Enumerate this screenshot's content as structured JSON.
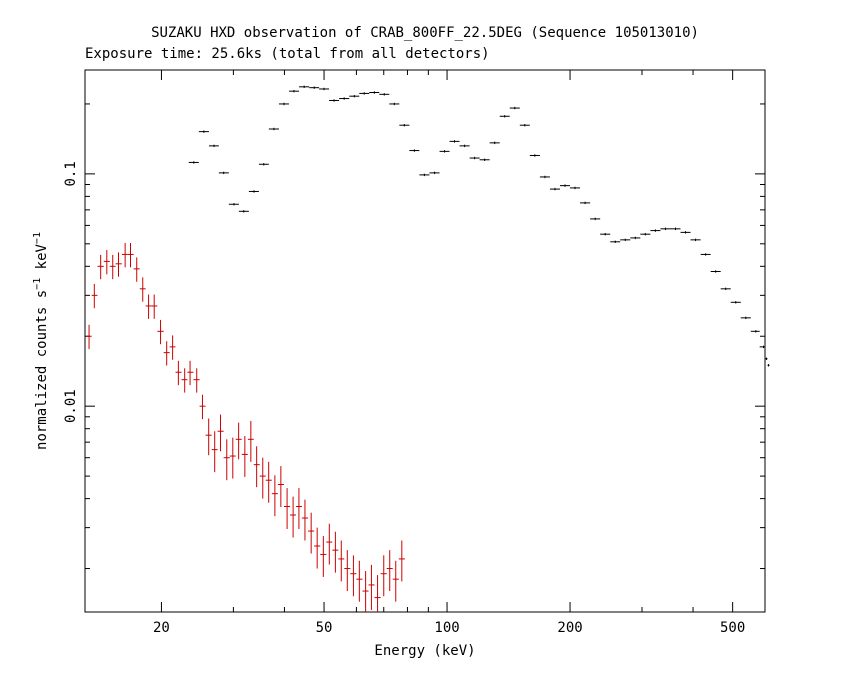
{
  "chart_data": {
    "type": "scatter",
    "title": "SUZAKU HXD observation of CRAB_800FF_22.5DEG (Sequence 105013010)",
    "subtitle": "Exposure time: 25.6ks (total from all detectors)",
    "xlabel": "Energy (keV)",
    "ylabel_main": "normalized counts s",
    "ylabel_sup1": "−1",
    "ylabel_mid": " keV",
    "ylabel_sup2": "−1",
    "xscale": "log",
    "yscale": "log",
    "xlim": [
      13,
      600
    ],
    "ylim": [
      0.0013,
      0.28
    ],
    "xticks": [
      {
        "v": 20,
        "label": "20"
      },
      {
        "v": 50,
        "label": "50"
      },
      {
        "v": 100,
        "label": "100"
      },
      {
        "v": 200,
        "label": "200"
      },
      {
        "v": 500,
        "label": "500"
      }
    ],
    "yticks": [
      {
        "v": 0.1,
        "label": "0.1"
      },
      {
        "v": 0.01,
        "label": "0.01"
      }
    ],
    "series": [
      {
        "color": "#000000",
        "points": [
          [
            24.0,
            0.112,
            0.012
          ],
          [
            25.4,
            0.152,
            0.012
          ],
          [
            26.9,
            0.132,
            0.012
          ],
          [
            28.4,
            0.101,
            0.012
          ],
          [
            30.1,
            0.074,
            0.012
          ],
          [
            31.8,
            0.069,
            0.012
          ],
          [
            33.7,
            0.084,
            0.012
          ],
          [
            35.6,
            0.11,
            0.012
          ],
          [
            37.7,
            0.156,
            0.012
          ],
          [
            39.9,
            0.2,
            0.012
          ],
          [
            42.2,
            0.227,
            0.012
          ],
          [
            44.7,
            0.237,
            0.012
          ],
          [
            47.3,
            0.235,
            0.012
          ],
          [
            50.0,
            0.232,
            0.012
          ],
          [
            52.9,
            0.207,
            0.012
          ],
          [
            56.0,
            0.211,
            0.012
          ],
          [
            59.3,
            0.216,
            0.012
          ],
          [
            62.7,
            0.222,
            0.012
          ],
          [
            66.4,
            0.224,
            0.012
          ],
          [
            70.2,
            0.22,
            0.012
          ],
          [
            74.3,
            0.2,
            0.012
          ],
          [
            78.6,
            0.162,
            0.012
          ],
          [
            83.2,
            0.126,
            0.012
          ],
          [
            88.0,
            0.099,
            0.012
          ],
          [
            93.2,
            0.101,
            0.012
          ],
          [
            98.6,
            0.125,
            0.012
          ],
          [
            104.3,
            0.138,
            0.012
          ],
          [
            110.4,
            0.132,
            0.012
          ],
          [
            116.8,
            0.117,
            0.012
          ],
          [
            123.6,
            0.115,
            0.012
          ],
          [
            130.8,
            0.136,
            0.012
          ],
          [
            138.4,
            0.177,
            0.012
          ],
          [
            146.5,
            0.192,
            0.012
          ],
          [
            155.0,
            0.162,
            0.012
          ],
          [
            164.0,
            0.12,
            0.012
          ],
          [
            173.6,
            0.097,
            0.012
          ],
          [
            183.7,
            0.086,
            0.012
          ],
          [
            194.4,
            0.089,
            0.012
          ],
          [
            205.7,
            0.087,
            0.012
          ],
          [
            217.7,
            0.075,
            0.012
          ],
          [
            230.4,
            0.064,
            0.012
          ],
          [
            243.8,
            0.055,
            0.012
          ],
          [
            258.0,
            0.051,
            0.012
          ],
          [
            273.0,
            0.052,
            0.012
          ],
          [
            288.9,
            0.053,
            0.012
          ],
          [
            305.7,
            0.055,
            0.012
          ],
          [
            323.5,
            0.057,
            0.012
          ],
          [
            342.4,
            0.058,
            0.012
          ],
          [
            362.3,
            0.058,
            0.012
          ],
          [
            383.4,
            0.056,
            0.012
          ],
          [
            405.7,
            0.052,
            0.012
          ],
          [
            429.4,
            0.045,
            0.012
          ],
          [
            454.4,
            0.038,
            0.012
          ],
          [
            480.8,
            0.032,
            0.012
          ],
          [
            508.8,
            0.028,
            0.012
          ],
          [
            538.5,
            0.024,
            0.012
          ],
          [
            569.8,
            0.021,
            0.012
          ],
          [
            595.0,
            0.018,
            0.012
          ],
          [
            605.0,
            0.016,
            0.012
          ],
          [
            612.0,
            0.015,
            0.012
          ]
        ]
      },
      {
        "color": "#cc0000",
        "points": [
          [
            13.3,
            0.02,
            0.12
          ],
          [
            13.7,
            0.03,
            0.12
          ],
          [
            14.2,
            0.04,
            0.12
          ],
          [
            14.7,
            0.042,
            0.12
          ],
          [
            15.2,
            0.04,
            0.12
          ],
          [
            15.7,
            0.041,
            0.12
          ],
          [
            16.3,
            0.045,
            0.12
          ],
          [
            16.8,
            0.045,
            0.12
          ],
          [
            17.4,
            0.039,
            0.12
          ],
          [
            18.0,
            0.032,
            0.12
          ],
          [
            18.6,
            0.027,
            0.12
          ],
          [
            19.2,
            0.027,
            0.12
          ],
          [
            19.9,
            0.021,
            0.12
          ],
          [
            20.6,
            0.017,
            0.12
          ],
          [
            21.3,
            0.018,
            0.12
          ],
          [
            22.0,
            0.014,
            0.12
          ],
          [
            22.8,
            0.013,
            0.12
          ],
          [
            23.5,
            0.014,
            0.12
          ],
          [
            24.4,
            0.013,
            0.12
          ],
          [
            25.2,
            0.01,
            0.12
          ],
          [
            26.1,
            0.0075,
            0.18
          ],
          [
            27.0,
            0.0065,
            0.2
          ],
          [
            27.9,
            0.0078,
            0.18
          ],
          [
            28.9,
            0.006,
            0.2
          ],
          [
            29.9,
            0.0061,
            0.2
          ],
          [
            30.9,
            0.0072,
            0.18
          ],
          [
            32.0,
            0.0062,
            0.2
          ],
          [
            33.1,
            0.0072,
            0.2
          ],
          [
            34.2,
            0.0056,
            0.2
          ],
          [
            35.4,
            0.005,
            0.2
          ],
          [
            36.6,
            0.0048,
            0.2
          ],
          [
            37.9,
            0.0042,
            0.2
          ],
          [
            39.2,
            0.0046,
            0.2
          ],
          [
            40.6,
            0.0037,
            0.2
          ],
          [
            42.0,
            0.0034,
            0.2
          ],
          [
            43.4,
            0.0037,
            0.2
          ],
          [
            44.9,
            0.0033,
            0.2
          ],
          [
            46.5,
            0.0029,
            0.2
          ],
          [
            48.1,
            0.0025,
            0.2
          ],
          [
            49.8,
            0.0023,
            0.2
          ],
          [
            51.5,
            0.0026,
            0.2
          ],
          [
            53.3,
            0.0024,
            0.2
          ],
          [
            55.1,
            0.0022,
            0.2
          ],
          [
            57.0,
            0.002,
            0.2
          ],
          [
            59.0,
            0.0019,
            0.2
          ],
          [
            61.0,
            0.0018,
            0.2
          ],
          [
            63.2,
            0.0016,
            0.22
          ],
          [
            65.3,
            0.0017,
            0.22
          ],
          [
            67.6,
            0.0015,
            0.25
          ],
          [
            70.0,
            0.0019,
            0.2
          ],
          [
            72.4,
            0.002,
            0.2
          ],
          [
            74.9,
            0.0018,
            0.2
          ],
          [
            77.5,
            0.0022,
            0.2
          ]
        ]
      }
    ]
  }
}
